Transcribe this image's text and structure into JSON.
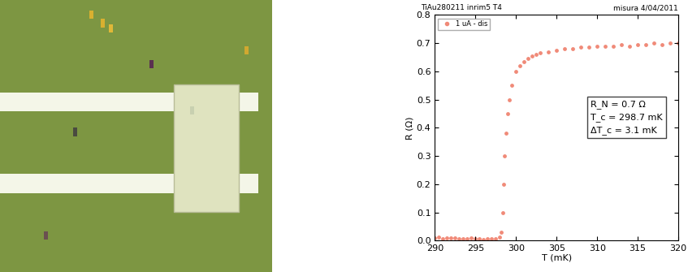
{
  "chart_data": {
    "type": "scatter",
    "title": "TiAu280211 inrim5 T4",
    "subtitle": "misura 4/04/2011",
    "x_label": "T (mK)",
    "y_label": "R (Ω)",
    "annotations": [
      "R_N = 0.7 Ω",
      "T_c = 298.7 mK",
      "ΔT_c = 3.1 mK"
    ],
    "legend": "upper left",
    "grid": false,
    "xlim": [
      290,
      320
    ],
    "xticks": [
      290,
      295,
      300,
      305,
      310,
      315,
      320
    ],
    "ylim": [
      0.0,
      0.8
    ],
    "yticks": [
      0.0,
      0.1,
      0.2,
      0.3,
      0.4,
      0.5,
      0.6,
      0.7,
      0.8
    ],
    "series": [
      {
        "name": "1 uA - dis",
        "color": "#f08a78",
        "marker": "o",
        "x": [
          290.0,
          290.5,
          291.0,
          291.5,
          292.0,
          292.5,
          293.0,
          293.5,
          294.0,
          294.5,
          295.0,
          295.5,
          296.0,
          296.5,
          297.0,
          297.5,
          298.0,
          298.2,
          298.4,
          298.5,
          298.6,
          298.8,
          299.0,
          299.2,
          299.5,
          300.0,
          300.5,
          301.0,
          301.5,
          302.0,
          302.5,
          303.0,
          304.0,
          305.0,
          306.0,
          307.0,
          308.0,
          309.0,
          310.0,
          311.0,
          312.0,
          313.0,
          314.0,
          315.0,
          316.0,
          317.0,
          318.0,
          319.0,
          320.0
        ],
        "values": [
          0.01,
          0.012,
          0.008,
          0.01,
          0.009,
          0.011,
          0.006,
          0.008,
          0.007,
          0.009,
          0.006,
          0.008,
          0.005,
          0.007,
          0.006,
          0.008,
          0.012,
          0.03,
          0.1,
          0.2,
          0.3,
          0.38,
          0.45,
          0.5,
          0.55,
          0.6,
          0.62,
          0.635,
          0.645,
          0.655,
          0.66,
          0.665,
          0.67,
          0.675,
          0.68,
          0.68,
          0.685,
          0.685,
          0.69,
          0.69,
          0.69,
          0.695,
          0.69,
          0.695,
          0.695,
          0.7,
          0.695,
          0.7,
          0.7
        ]
      }
    ]
  }
}
